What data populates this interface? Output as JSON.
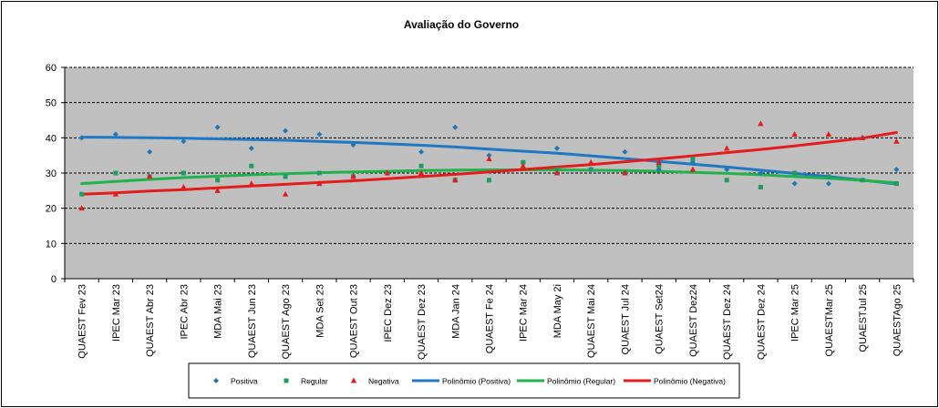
{
  "chart_data": {
    "type": "scatter",
    "title": "Avaliação do Governo",
    "xlabel": "",
    "ylabel": "",
    "ylim": [
      0,
      60
    ],
    "yticks": [
      0,
      10,
      20,
      30,
      40,
      50,
      60
    ],
    "grid": "horizontal dashed",
    "legend_position": "bottom",
    "categories": [
      "QUAEST Fev 23",
      "IPEC Mar 23",
      "QUAEST Abr 23",
      "IPEC Abr 23",
      "MDA Mai 23",
      "QUAEST Jun 23",
      "QUAEST Ago 23",
      "MDA Set 23",
      "QUAEST Out 23",
      "IPEC Dez 23",
      "QUAEST Dez 23",
      "MDA Jan 24",
      "QUAEST Fe 24",
      "IPEC Mar 24",
      "MDA May 2i",
      "QUAEST Mai 24",
      "QUAEST Jul 24",
      "QUAEST Set24",
      "QUAEST Dez24",
      "QUAEST Dez 24",
      "QUAEST Dez 24",
      "IPEC Mar 25",
      "QUAESTMar 25",
      "QUAESTJul 25",
      "QUAESTAgo 25"
    ],
    "series": [
      {
        "name": "Positiva",
        "marker": "diamond",
        "color": "#1f77b4",
        "values": [
          40,
          41,
          36,
          39,
          43,
          37,
          42,
          41,
          38,
          30,
          36,
          43,
          35,
          33,
          37,
          31,
          36,
          31,
          33,
          31,
          30,
          27,
          27,
          40,
          31
        ]
      },
      {
        "name": "Regular",
        "marker": "square",
        "color": "#1e9c64",
        "values": [
          24,
          30,
          29,
          30,
          28,
          32,
          29,
          30,
          29,
          30,
          32,
          28,
          28,
          33,
          31,
          31,
          30,
          32,
          34,
          28,
          26,
          30,
          29,
          28,
          27
        ]
      },
      {
        "name": "Negativa",
        "marker": "triangle",
        "color": "#e31a1c",
        "values": [
          20,
          24,
          29,
          26,
          25,
          27,
          24,
          27,
          29,
          30,
          30,
          28,
          34,
          32,
          30,
          33,
          30,
          33,
          31,
          37,
          44,
          41,
          41,
          40,
          39
        ]
      }
    ],
    "trendlines": [
      {
        "name": "Polinômio (Positiva)",
        "color": "#1f78c4",
        "values": [
          40.2,
          40.1,
          40.0,
          39.9,
          39.7,
          39.5,
          39.3,
          39.0,
          38.7,
          38.3,
          37.9,
          37.4,
          36.8,
          36.2,
          35.6,
          34.9,
          34.1,
          33.3,
          32.5,
          31.7,
          30.8,
          29.9,
          29.0,
          28.0,
          26.9
        ]
      },
      {
        "name": "Polinômio (Regular)",
        "color": "#22b24c",
        "values": [
          27.0,
          27.6,
          28.2,
          28.7,
          29.1,
          29.5,
          29.8,
          30.1,
          30.3,
          30.5,
          30.7,
          30.8,
          30.9,
          30.9,
          30.9,
          30.8,
          30.7,
          30.5,
          30.2,
          29.9,
          29.5,
          29.0,
          28.5,
          27.9,
          27.2
        ]
      },
      {
        "name": "Polinômio (Negativa)",
        "color": "#e51c1c",
        "values": [
          24.0,
          24.4,
          24.9,
          25.3,
          25.8,
          26.3,
          26.8,
          27.3,
          27.8,
          28.4,
          29.0,
          29.6,
          30.3,
          31.0,
          31.7,
          32.4,
          33.2,
          34.0,
          34.9,
          35.8,
          36.7,
          37.7,
          38.8,
          39.9,
          41.5
        ]
      }
    ]
  }
}
